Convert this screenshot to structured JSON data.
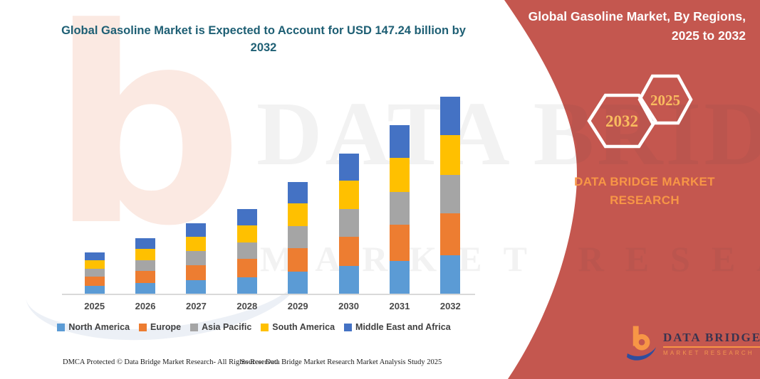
{
  "page_title": "Global Gasoline Market is Expected to Account for USD 147.24 billion by 2032",
  "banner": {
    "title": "Global Gasoline Market, By Regions, 2025 to 2032",
    "brand_text": "DATA BRIDGE MARKET RESEARCH",
    "background_color": "#c4574f",
    "hexagons": [
      {
        "label": "2032"
      },
      {
        "label": "2025"
      }
    ],
    "hexagon_text_color": "#f9bc5f"
  },
  "logo": {
    "name": "DATA BRIDGE",
    "subtext": "MARKET RESEARCH",
    "orange": "#f79646",
    "blue": "#2f4d9e"
  },
  "watermark": {
    "letter": "b",
    "line1": "DATA BRIDGE",
    "line2": "MARKET RESEARCH"
  },
  "footer": {
    "left": "DMCA Protected © Data Bridge Market Research-  All Rights Reserved.",
    "right": "Source: Data Bridge Market Research  Market Analysis Study 2025"
  },
  "chart_data": {
    "type": "bar",
    "stacked": true,
    "title": "Global Gasoline Market is Expected to Account for USD 147.24 billion by 2032",
    "units": "USD billion",
    "xlabel": "",
    "ylabel": "",
    "y_axis_visible": false,
    "grid": false,
    "legend_position": "bottom",
    "ylim": [
      0,
      155
    ],
    "categories": [
      "2025",
      "2026",
      "2027",
      "2028",
      "2029",
      "2030",
      "2031",
      "2032"
    ],
    "series": [
      {
        "name": "North America",
        "color": "#5b9bd5",
        "values": [
          6.0,
          8.1,
          10.3,
          12.3,
          16.3,
          20.5,
          24.6,
          28.7
        ]
      },
      {
        "name": "Europe",
        "color": "#ed7d31",
        "values": [
          6.6,
          8.8,
          11.2,
          13.5,
          17.8,
          22.3,
          26.8,
          31.4
        ]
      },
      {
        "name": "Asia Pacific",
        "color": "#a5a5a5",
        "values": [
          6.0,
          8.1,
          10.3,
          12.3,
          16.3,
          20.5,
          24.6,
          28.7
        ]
      },
      {
        "name": "South America",
        "color": "#ffc000",
        "values": [
          6.2,
          8.4,
          10.6,
          12.8,
          16.9,
          21.2,
          25.4,
          29.7
        ]
      },
      {
        "name": "Middle East and Africa",
        "color": "#4472c4",
        "values": [
          6.0,
          8.0,
          10.2,
          12.3,
          16.4,
          20.4,
          24.6,
          28.74
        ]
      }
    ],
    "totals_by_year": [
      30.8,
      41.4,
      52.6,
      63.2,
      83.7,
      104.9,
      126.0,
      147.24
    ]
  }
}
